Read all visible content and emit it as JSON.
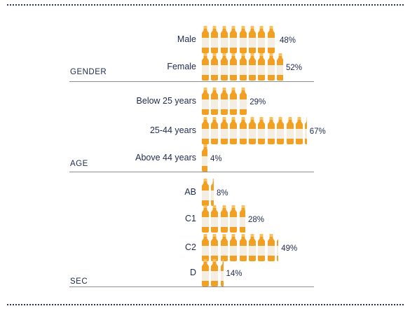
{
  "chart_data": {
    "type": "bar",
    "colors": {
      "juice": "#f2a024",
      "cap": "#f7c15e",
      "label": "#f4ede1",
      "text": "#1f2a4f"
    },
    "groups": [
      {
        "name": "GENDER",
        "rows": [
          {
            "label": "Male",
            "value": 48,
            "value_label": "48%"
          },
          {
            "label": "Female",
            "value": 52,
            "value_label": "52%"
          }
        ]
      },
      {
        "name": "AGE",
        "rows": [
          {
            "label": "Below 25 years",
            "value": 29,
            "value_label": "29%"
          },
          {
            "label": "25-44 years",
            "value": 67,
            "value_label": "67%"
          },
          {
            "label": "Above 44 years",
            "value": 4,
            "value_label": "4%"
          }
        ]
      },
      {
        "name": "SEC",
        "rows": [
          {
            "label": "AB",
            "value": 8,
            "value_label": "8%"
          },
          {
            "label": "C1",
            "value": 28,
            "value_label": "28%"
          },
          {
            "label": "C2",
            "value": 49,
            "value_label": "49%"
          },
          {
            "label": "D",
            "value": 14,
            "value_label": "14%"
          }
        ]
      }
    ]
  }
}
